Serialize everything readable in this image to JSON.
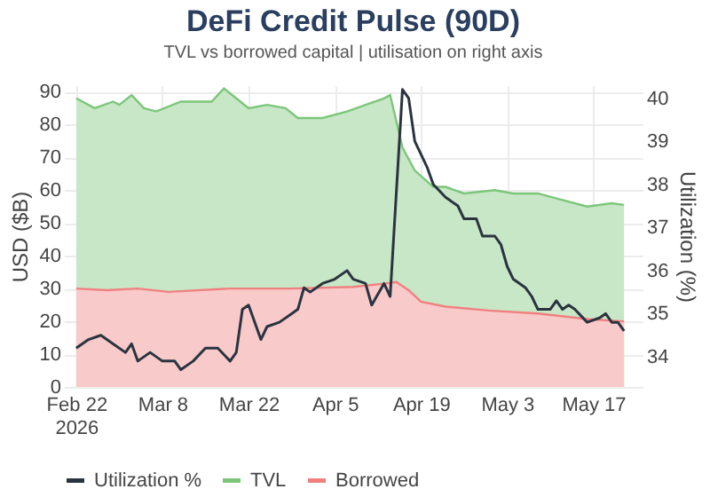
{
  "chart_data": {
    "type": "area",
    "title": "DeFi Credit Pulse (90D)",
    "subtitle": "TVL vs borrowed capital | utilisation on right axis",
    "ylabel": "USD ($B)",
    "y2label": "Utilization (%)",
    "xlim": [
      "2026-02-20",
      "2026-05-25"
    ],
    "xticks": [
      {
        "value": "2026-02-22",
        "label": "Feb 22\n2026"
      },
      {
        "value": "2026-03-08",
        "label": "Mar 8"
      },
      {
        "value": "2026-03-22",
        "label": "Mar 22"
      },
      {
        "value": "2026-04-05",
        "label": "Apr 5"
      },
      {
        "value": "2026-04-19",
        "label": "Apr 19"
      },
      {
        "value": "2026-05-03",
        "label": "May 3"
      },
      {
        "value": "2026-05-17",
        "label": "May 17"
      }
    ],
    "ylim": [
      0,
      92
    ],
    "yticks": [
      0,
      10,
      20,
      30,
      40,
      50,
      60,
      70,
      80,
      90
    ],
    "y2lim": [
      33.3,
      40.3
    ],
    "y2ticks": [
      34,
      35,
      36,
      37,
      38,
      39,
      40
    ],
    "grid": true,
    "legend": "bottom",
    "series": [
      {
        "name": "Utilization %",
        "type": "line",
        "axis": "y2",
        "color": "#2a3440",
        "x": [
          "2026-02-22",
          "2026-02-24",
          "2026-02-26",
          "2026-02-28",
          "2026-03-02",
          "2026-03-03",
          "2026-03-04",
          "2026-03-06",
          "2026-03-08",
          "2026-03-10",
          "2026-03-11",
          "2026-03-13",
          "2026-03-15",
          "2026-03-17",
          "2026-03-19",
          "2026-03-20",
          "2026-03-21",
          "2026-03-22",
          "2026-03-24",
          "2026-03-25",
          "2026-03-27",
          "2026-03-29",
          "2026-03-30",
          "2026-03-31",
          "2026-04-01",
          "2026-04-03",
          "2026-04-05",
          "2026-04-07",
          "2026-04-08",
          "2026-04-10",
          "2026-04-11",
          "2026-04-13",
          "2026-04-14",
          "2026-04-16",
          "2026-04-17",
          "2026-04-18",
          "2026-04-20",
          "2026-04-21",
          "2026-04-23",
          "2026-04-25",
          "2026-04-26",
          "2026-04-28",
          "2026-04-29",
          "2026-05-01",
          "2026-05-02",
          "2026-05-03",
          "2026-05-04",
          "2026-05-06",
          "2026-05-07",
          "2026-05-08",
          "2026-05-10",
          "2026-05-11",
          "2026-05-12",
          "2026-05-13",
          "2026-05-14",
          "2026-05-16",
          "2026-05-18",
          "2026-05-19",
          "2026-05-20",
          "2026-05-21",
          "2026-05-22"
        ],
        "values": [
          34.2,
          34.4,
          34.5,
          34.3,
          34.1,
          34.3,
          33.9,
          34.1,
          33.9,
          33.9,
          33.7,
          33.9,
          34.2,
          34.2,
          33.9,
          34.1,
          35.1,
          35.2,
          34.4,
          34.7,
          34.8,
          35.0,
          35.1,
          35.6,
          35.5,
          35.7,
          35.8,
          36.0,
          35.8,
          35.7,
          35.2,
          35.7,
          35.4,
          40.2,
          40.0,
          39.0,
          38.4,
          38.0,
          37.7,
          37.5,
          37.2,
          37.2,
          36.8,
          36.8,
          36.6,
          36.1,
          35.8,
          35.6,
          35.4,
          35.1,
          35.1,
          35.3,
          35.1,
          35.2,
          35.1,
          34.8,
          34.9,
          35.0,
          34.8,
          34.8,
          34.6
        ]
      },
      {
        "name": "TVL",
        "type": "area",
        "color": "#7cc67a",
        "x": [
          "2026-02-22",
          "2026-02-25",
          "2026-02-28",
          "2026-03-01",
          "2026-03-03",
          "2026-03-05",
          "2026-03-07",
          "2026-03-11",
          "2026-03-16",
          "2026-03-18",
          "2026-03-20",
          "2026-03-22",
          "2026-03-25",
          "2026-03-28",
          "2026-03-30",
          "2026-04-03",
          "2026-04-07",
          "2026-04-10",
          "2026-04-13",
          "2026-04-14",
          "2026-04-16",
          "2026-04-18",
          "2026-04-21",
          "2026-04-23",
          "2026-04-26",
          "2026-05-01",
          "2026-05-04",
          "2026-05-08",
          "2026-05-12",
          "2026-05-16",
          "2026-05-20",
          "2026-05-22"
        ],
        "values": [
          88,
          85,
          87,
          86,
          89,
          85,
          84,
          87,
          87,
          91,
          88,
          85,
          86,
          85,
          82,
          82,
          84,
          86,
          88,
          89,
          73,
          66,
          61,
          61,
          59,
          60,
          59,
          59,
          57,
          55,
          56,
          55.5
        ]
      },
      {
        "name": "Borrowed",
        "type": "area",
        "color": "#f08080",
        "x": [
          "2026-02-22",
          "2026-02-27",
          "2026-03-04",
          "2026-03-09",
          "2026-03-19",
          "2026-03-29",
          "2026-04-08",
          "2026-04-13",
          "2026-04-15",
          "2026-04-17",
          "2026-04-19",
          "2026-04-23",
          "2026-04-30",
          "2026-05-08",
          "2026-05-16",
          "2026-05-22"
        ],
        "values": [
          30,
          29.5,
          30,
          29,
          30,
          30,
          30.5,
          31.5,
          32,
          29.5,
          26,
          24.5,
          23.3,
          22.4,
          20.7,
          20
        ]
      }
    ]
  }
}
